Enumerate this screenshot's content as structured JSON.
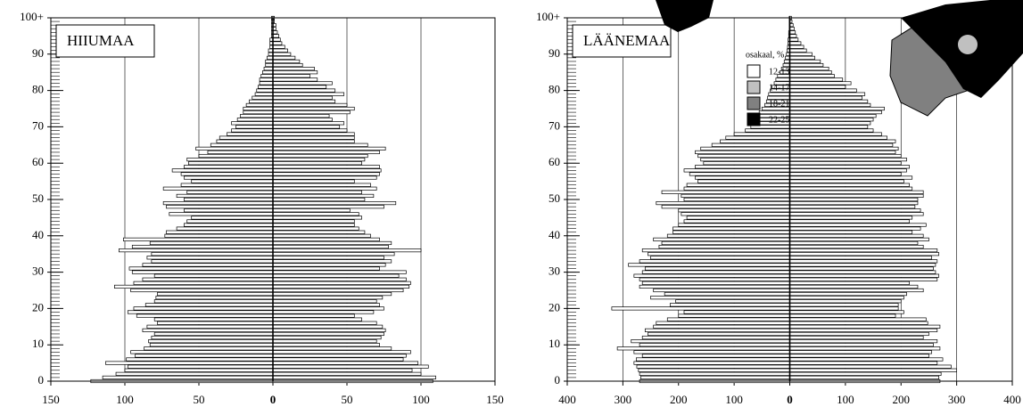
{
  "chart_data": [
    {
      "type": "bar",
      "orientation": "horizontal",
      "title": "HIIUMAA",
      "ages": [
        0,
        1,
        2,
        3,
        4,
        5,
        6,
        7,
        8,
        9,
        10,
        11,
        12,
        13,
        14,
        15,
        16,
        17,
        18,
        19,
        20,
        21,
        22,
        23,
        24,
        25,
        26,
        27,
        28,
        29,
        30,
        31,
        32,
        33,
        34,
        35,
        36,
        37,
        38,
        39,
        40,
        41,
        42,
        43,
        44,
        45,
        46,
        47,
        48,
        49,
        50,
        51,
        52,
        53,
        54,
        55,
        56,
        57,
        58,
        59,
        60,
        61,
        62,
        63,
        64,
        65,
        66,
        67,
        68,
        69,
        70,
        71,
        72,
        73,
        74,
        75,
        76,
        77,
        78,
        79,
        80,
        81,
        82,
        83,
        84,
        85,
        86,
        87,
        88,
        89,
        90,
        91,
        92,
        93,
        94,
        95,
        96,
        97,
        98,
        99,
        100
      ],
      "series": [
        {
          "color": "#ffffff",
          "values": [
            -123,
            -115,
            -106,
            -100,
            -98,
            -113,
            -99,
            -93,
            -96,
            -87,
            -83,
            -84,
            -82,
            -80,
            -88,
            -85,
            -78,
            -80,
            -92,
            -98,
            -94,
            -86,
            -80,
            -79,
            -78,
            -96,
            -107,
            -94,
            -88,
            -80,
            -95,
            -97,
            -88,
            -82,
            -85,
            -82,
            -104,
            -95,
            -83,
            -101,
            -73,
            -72,
            -65,
            -60,
            -58,
            -55,
            -70,
            -60,
            -72,
            -74,
            -60,
            -65,
            -58,
            -74,
            -62,
            -55,
            -60,
            -62,
            -68,
            -60,
            -57,
            -58,
            -50,
            -44,
            -52,
            -42,
            -38,
            -36,
            -31,
            -28,
            -25,
            -28,
            -24,
            -22,
            -20,
            -20,
            -18,
            -16,
            -14,
            -12,
            -11,
            -10,
            -9,
            -9,
            -8,
            -7,
            -6,
            -5,
            -5,
            -4,
            -3,
            -3,
            -2,
            -2,
            -2,
            -1,
            -1,
            -1,
            -1,
            -1,
            -1
          ]
        },
        {
          "color": "#ffffff",
          "values": [
            108,
            110,
            100,
            94,
            105,
            98,
            88,
            90,
            93,
            80,
            72,
            70,
            73,
            75,
            76,
            74,
            70,
            60,
            55,
            68,
            75,
            72,
            70,
            74,
            80,
            88,
            92,
            93,
            90,
            85,
            90,
            72,
            76,
            80,
            75,
            82,
            100,
            78,
            80,
            72,
            66,
            62,
            58,
            55,
            55,
            60,
            58,
            52,
            75,
            83,
            62,
            68,
            60,
            70,
            66,
            55,
            70,
            72,
            73,
            72,
            60,
            62,
            64,
            72,
            76,
            64,
            55,
            55,
            55,
            50,
            45,
            48,
            40,
            38,
            52,
            55,
            50,
            42,
            40,
            48,
            42,
            36,
            40,
            30,
            25,
            30,
            28,
            20,
            18,
            15,
            12,
            10,
            8,
            6,
            5,
            4,
            3,
            2,
            2,
            1,
            1
          ]
        }
      ],
      "xlim": [
        -150,
        150
      ],
      "xticks": [
        {
          "value": -150,
          "label": "150"
        },
        {
          "value": -100,
          "label": "100"
        },
        {
          "value": -50,
          "label": "50"
        },
        0,
        50,
        100,
        150
      ],
      "ylim": [
        0,
        100
      ],
      "yticks": [
        0,
        10,
        20,
        30,
        40,
        50,
        60,
        70,
        80,
        90,
        {
          "value": 100,
          "label": "100+"
        }
      ],
      "grid": true
    },
    {
      "type": "bar",
      "orientation": "horizontal",
      "title": "LÄÄNEMAA",
      "ages": [
        0,
        1,
        2,
        3,
        4,
        5,
        6,
        7,
        8,
        9,
        10,
        11,
        12,
        13,
        14,
        15,
        16,
        17,
        18,
        19,
        20,
        21,
        22,
        23,
        24,
        25,
        26,
        27,
        28,
        29,
        30,
        31,
        32,
        33,
        34,
        35,
        36,
        37,
        38,
        39,
        40,
        41,
        42,
        43,
        44,
        45,
        46,
        47,
        48,
        49,
        50,
        51,
        52,
        53,
        54,
        55,
        56,
        57,
        58,
        59,
        60,
        61,
        62,
        63,
        64,
        65,
        66,
        67,
        68,
        69,
        70,
        71,
        72,
        73,
        74,
        75,
        76,
        77,
        78,
        79,
        80,
        81,
        82,
        83,
        84,
        85,
        86,
        87,
        88,
        89,
        90,
        91,
        92,
        93,
        94,
        95,
        96,
        97,
        98,
        99,
        100
      ],
      "series": [
        {
          "color": "#ffffff",
          "values": [
            -270,
            -268,
            -270,
            -272,
            -275,
            -280,
            -276,
            -265,
            -280,
            -310,
            -270,
            -285,
            -265,
            -255,
            -260,
            -245,
            -240,
            -220,
            -200,
            -190,
            -320,
            -215,
            -205,
            -250,
            -225,
            -245,
            -270,
            -265,
            -270,
            -280,
            -265,
            -260,
            -290,
            -270,
            -250,
            -255,
            -265,
            -235,
            -230,
            -245,
            -220,
            -210,
            -210,
            -200,
            -190,
            -185,
            -195,
            -200,
            -230,
            -240,
            -190,
            -195,
            -230,
            -190,
            -185,
            -165,
            -170,
            -180,
            -190,
            -170,
            -155,
            -160,
            -165,
            -170,
            -160,
            -140,
            -125,
            -115,
            -100,
            -80,
            -70,
            -65,
            -60,
            -58,
            -55,
            -50,
            -45,
            -42,
            -40,
            -38,
            -35,
            -32,
            -28,
            -25,
            -22,
            -18,
            -15,
            -12,
            -10,
            -8,
            -6,
            -5,
            -4,
            -3,
            -3,
            -2,
            -2,
            -1,
            -1,
            -1,
            -1
          ]
        },
        {
          "color": "#ffffff",
          "values": [
            270,
            268,
            272,
            300,
            290,
            265,
            275,
            250,
            255,
            270,
            258,
            265,
            240,
            250,
            265,
            270,
            248,
            245,
            190,
            205,
            195,
            195,
            200,
            205,
            210,
            240,
            230,
            215,
            265,
            268,
            262,
            258,
            262,
            265,
            255,
            268,
            265,
            240,
            230,
            250,
            240,
            220,
            235,
            245,
            215,
            220,
            240,
            235,
            225,
            230,
            230,
            240,
            240,
            220,
            215,
            205,
            220,
            200,
            210,
            215,
            200,
            210,
            200,
            190,
            195,
            185,
            190,
            175,
            165,
            150,
            140,
            145,
            150,
            155,
            165,
            170,
            145,
            140,
            130,
            135,
            120,
            100,
            110,
            95,
            80,
            75,
            70,
            60,
            55,
            45,
            40,
            30,
            25,
            20,
            15,
            12,
            10,
            8,
            6,
            4,
            3
          ]
        }
      ],
      "xlim": [
        -400,
        400
      ],
      "xticks": [
        {
          "value": -400,
          "label": "400"
        },
        {
          "value": -300,
          "label": "300"
        },
        {
          "value": -200,
          "label": "200"
        },
        {
          "value": -100,
          "label": "100"
        },
        0,
        100,
        200,
        300,
        400
      ],
      "ylim": [
        0,
        100
      ],
      "yticks": [
        0,
        10,
        20,
        30,
        40,
        50,
        60,
        70,
        80,
        90,
        {
          "value": 100,
          "label": "100+"
        }
      ],
      "grid": true
    }
  ],
  "map_legend": {
    "title": "osakaal, %",
    "items": [
      {
        "label": "12-13",
        "color": "#ffffff"
      },
      {
        "label": "14-17",
        "color": "#c0c0c0"
      },
      {
        "label": "18-21",
        "color": "#808080"
      },
      {
        "label": "22-25",
        "color": "#000000"
      }
    ]
  }
}
